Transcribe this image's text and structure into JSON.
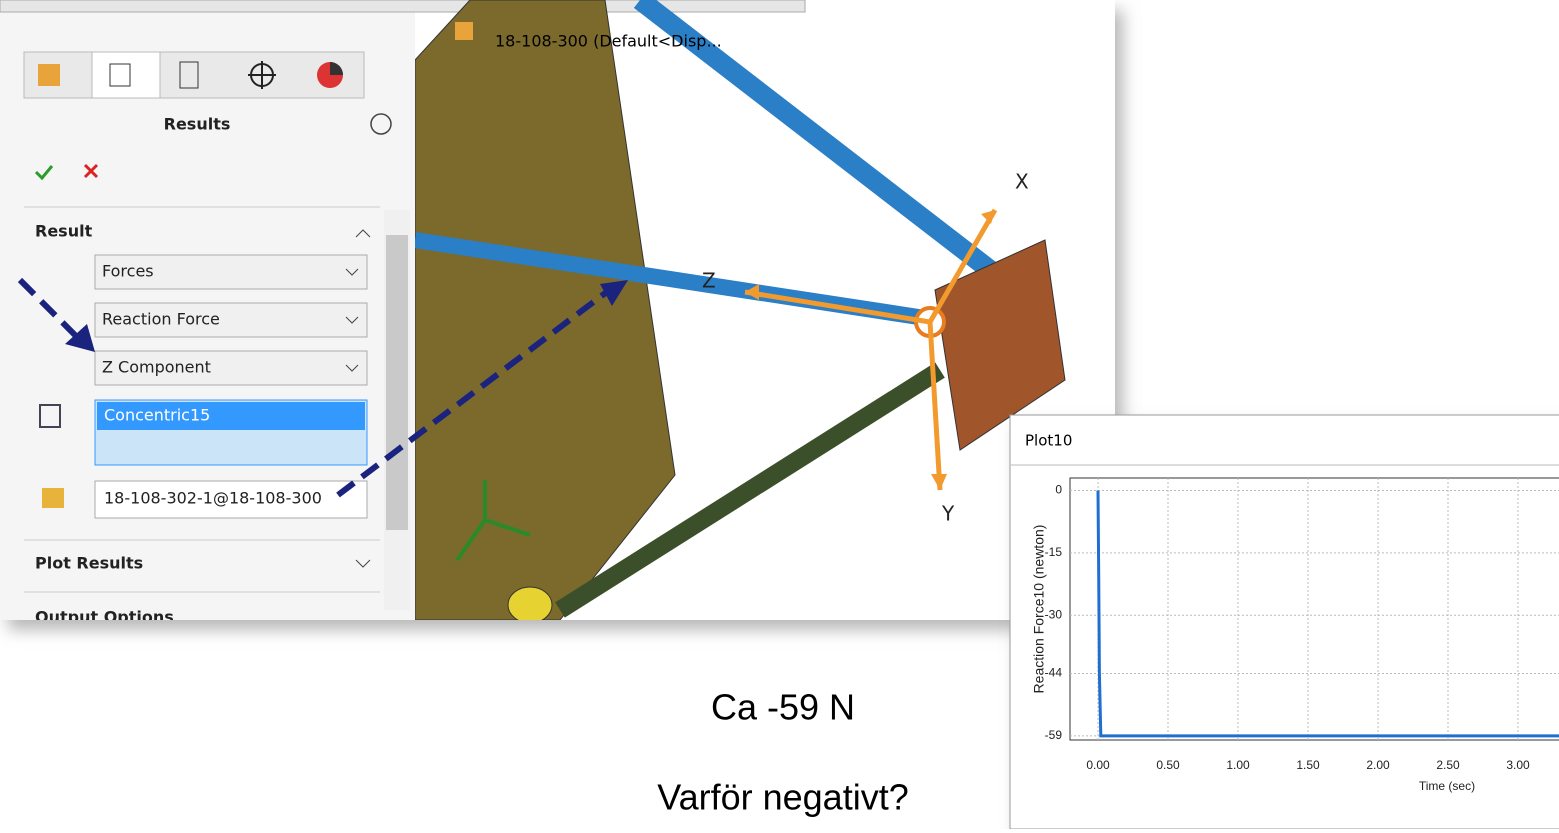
{
  "panel": {
    "title": "Results",
    "section_result": "Result",
    "dropdowns": [
      "Forces",
      "Reaction Force",
      "Z Component"
    ],
    "selection": "Concentric15",
    "component": "18-108-302-1@18-108-300",
    "section_plot": "Plot Results",
    "section_output": "Output Options"
  },
  "viewport": {
    "tree_label": "18-108-300  (Default<Disp...",
    "axis_x": "X",
    "axis_z": "Z",
    "axis_y": "Y"
  },
  "plot_window": {
    "title": "Plot10"
  },
  "chart_data": {
    "type": "line",
    "ylabel": "Reaction Force10 (newton)",
    "xlabel": "Time (sec)",
    "x": [
      0,
      0.005,
      0.01,
      0.02,
      3.3
    ],
    "series": [
      {
        "name": "Reaction Force10",
        "color": "#1f6fd1",
        "values": [
          0,
          -20,
          -44,
          -59,
          -59
        ]
      }
    ],
    "xlim": [
      -0.2,
      3.3
    ],
    "ylim": [
      -60,
      3
    ],
    "xticks": [
      {
        "value": 0,
        "label": "0.00"
      },
      {
        "value": 0.5,
        "label": "0.50"
      },
      {
        "value": 1,
        "label": "1.00"
      },
      {
        "value": 1.5,
        "label": "1.50"
      },
      {
        "value": 2,
        "label": "2.00"
      },
      {
        "value": 2.5,
        "label": "2.50"
      },
      {
        "value": 3,
        "label": "3.00"
      }
    ],
    "yticks": [
      0,
      -15,
      -30,
      -44,
      -59
    ],
    "grid": true
  },
  "notes": [
    "Ca -59 N",
    "Varför negativt?"
  ]
}
